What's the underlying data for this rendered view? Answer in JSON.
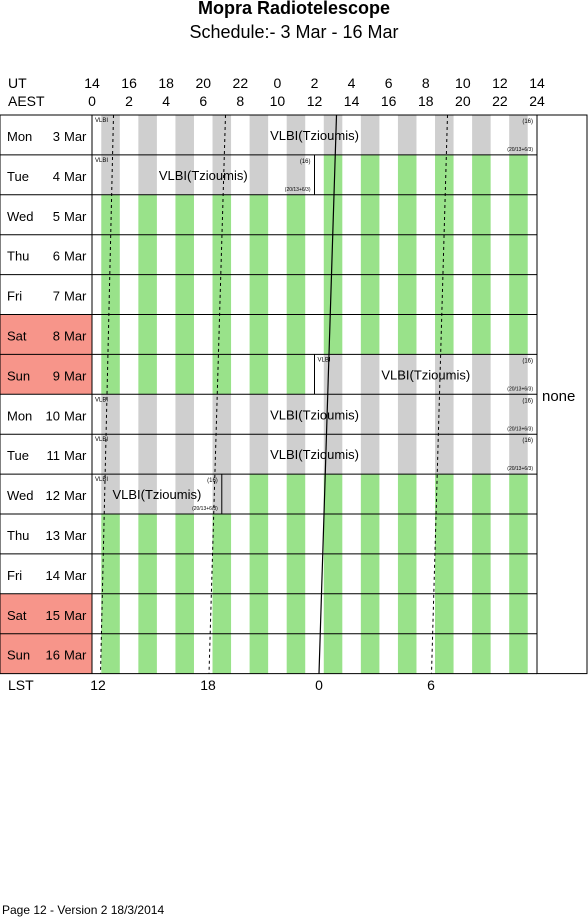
{
  "title": "Mopra Radiotelescope",
  "subtitle": "Schedule:- 3  Mar - 16 Mar",
  "axis": {
    "ut_label": "UT",
    "aest_label": "AEST",
    "lst_label": "LST",
    "ut_hours": [
      "14",
      "16",
      "18",
      "20",
      "22",
      "0",
      "2",
      "4",
      "6",
      "8",
      "10",
      "12",
      "14"
    ],
    "aest_hours": [
      "0",
      "2",
      "4",
      "6",
      "8",
      "10",
      "12",
      "14",
      "16",
      "18",
      "20",
      "22",
      "24"
    ],
    "lst_ticks": [
      "12",
      "18",
      "0",
      "6"
    ]
  },
  "colors": {
    "green": "#99e28a",
    "grey": "#cfcfcf",
    "weekend": "#f7958a"
  },
  "days": [
    {
      "dow": "Mon",
      "date": "3",
      "mon": "Mar",
      "weekend": false
    },
    {
      "dow": "Tue",
      "date": "4",
      "mon": "Mar",
      "weekend": false
    },
    {
      "dow": "Wed",
      "date": "5",
      "mon": "Mar",
      "weekend": false
    },
    {
      "dow": "Thu",
      "date": "6",
      "mon": "Mar",
      "weekend": false
    },
    {
      "dow": "Fri",
      "date": "7",
      "mon": "Mar",
      "weekend": false
    },
    {
      "dow": "Sat",
      "date": "8",
      "mon": "Mar",
      "weekend": true
    },
    {
      "dow": "Sun",
      "date": "9",
      "mon": "Mar",
      "weekend": true
    },
    {
      "dow": "Mon",
      "date": "10",
      "mon": "Mar",
      "weekend": false
    },
    {
      "dow": "Tue",
      "date": "11",
      "mon": "Mar",
      "weekend": false
    },
    {
      "dow": "Wed",
      "date": "12",
      "mon": "Mar",
      "weekend": false
    },
    {
      "dow": "Thu",
      "date": "13",
      "mon": "Mar",
      "weekend": false
    },
    {
      "dow": "Fri",
      "date": "14",
      "mon": "Mar",
      "weekend": false
    },
    {
      "dow": "Sat",
      "date": "15",
      "mon": "Mar",
      "weekend": true
    },
    {
      "dow": "Sun",
      "date": "16",
      "mon": "Mar",
      "weekend": true
    }
  ],
  "blocks": [
    {
      "row": 0,
      "start": 0,
      "end": 24,
      "tag": "VLBI",
      "label": "VLBI(Tzioumis)",
      "code": "(16)",
      "sub": "(20/13+6/3)"
    },
    {
      "row": 1,
      "start": 0,
      "end": 12,
      "tag": "VLBI",
      "label": "VLBI(Tzioumis)",
      "code": "(16)",
      "sub": "(20/13+6/3)"
    },
    {
      "row": 6,
      "start": 12,
      "end": 24,
      "tag": "VLBI",
      "label": "VLBI(Tzioumis)",
      "code": "(16)",
      "sub": "(20/13+6/3)"
    },
    {
      "row": 7,
      "start": 0,
      "end": 24,
      "tag": "VLBI",
      "label": "VLBI(Tzioumis)",
      "code": "(16)",
      "sub": "(20/13+6/3)"
    },
    {
      "row": 8,
      "start": 0,
      "end": 24,
      "tag": "VLBI",
      "label": "VLBI(Tzioumis)",
      "code": "(16)",
      "sub": "(20/13+6/3)"
    },
    {
      "row": 9,
      "start": 0,
      "end": 7,
      "tag": "VLBI",
      "label": "VLBI(Tzioumis)",
      "code": "(16)",
      "sub": "(20/13+6/3)"
    }
  ],
  "side_note": "none",
  "footer": "Page 12 - Version 2  18/3/2014"
}
